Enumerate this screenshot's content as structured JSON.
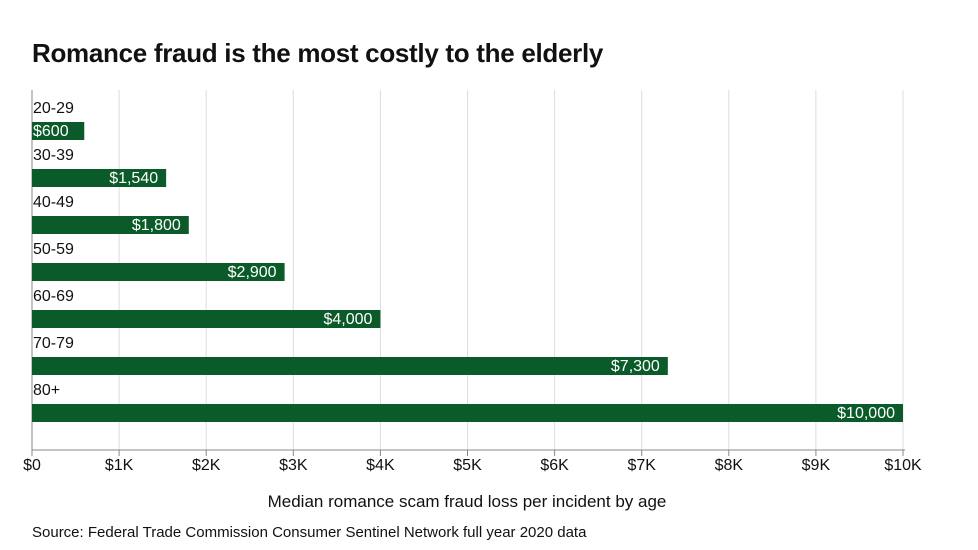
{
  "chart_data": {
    "type": "bar",
    "orientation": "horizontal",
    "title": "Romance fraud is the most costly to the elderly",
    "xlabel": "Median romance scam fraud loss per incident by age",
    "source": "Source: Federal Trade Commission Consumer Sentinel Network full year 2020 data",
    "categories": [
      "20-29",
      "30-39",
      "40-49",
      "50-59",
      "60-69",
      "70-79",
      "80+"
    ],
    "values": [
      600,
      1540,
      1800,
      2900,
      4000,
      7300,
      10000
    ],
    "value_labels": [
      "$600",
      "$1,540",
      "$1,800",
      "$2,900",
      "$4,000",
      "$7,300",
      "$10,000"
    ],
    "xlim": [
      0,
      10000
    ],
    "xticks": [
      0,
      1000,
      2000,
      3000,
      4000,
      5000,
      6000,
      7000,
      8000,
      9000,
      10000
    ],
    "xtick_labels": [
      "$0",
      "$1K",
      "$2K",
      "$3K",
      "$4K",
      "$5K",
      "$6K",
      "$7K",
      "$8K",
      "$9K",
      "$10K"
    ],
    "grid": true,
    "legend": "none",
    "bar_color": "#0b5a2a",
    "grid_color": "#dddddd",
    "axis_color": "#888888"
  }
}
